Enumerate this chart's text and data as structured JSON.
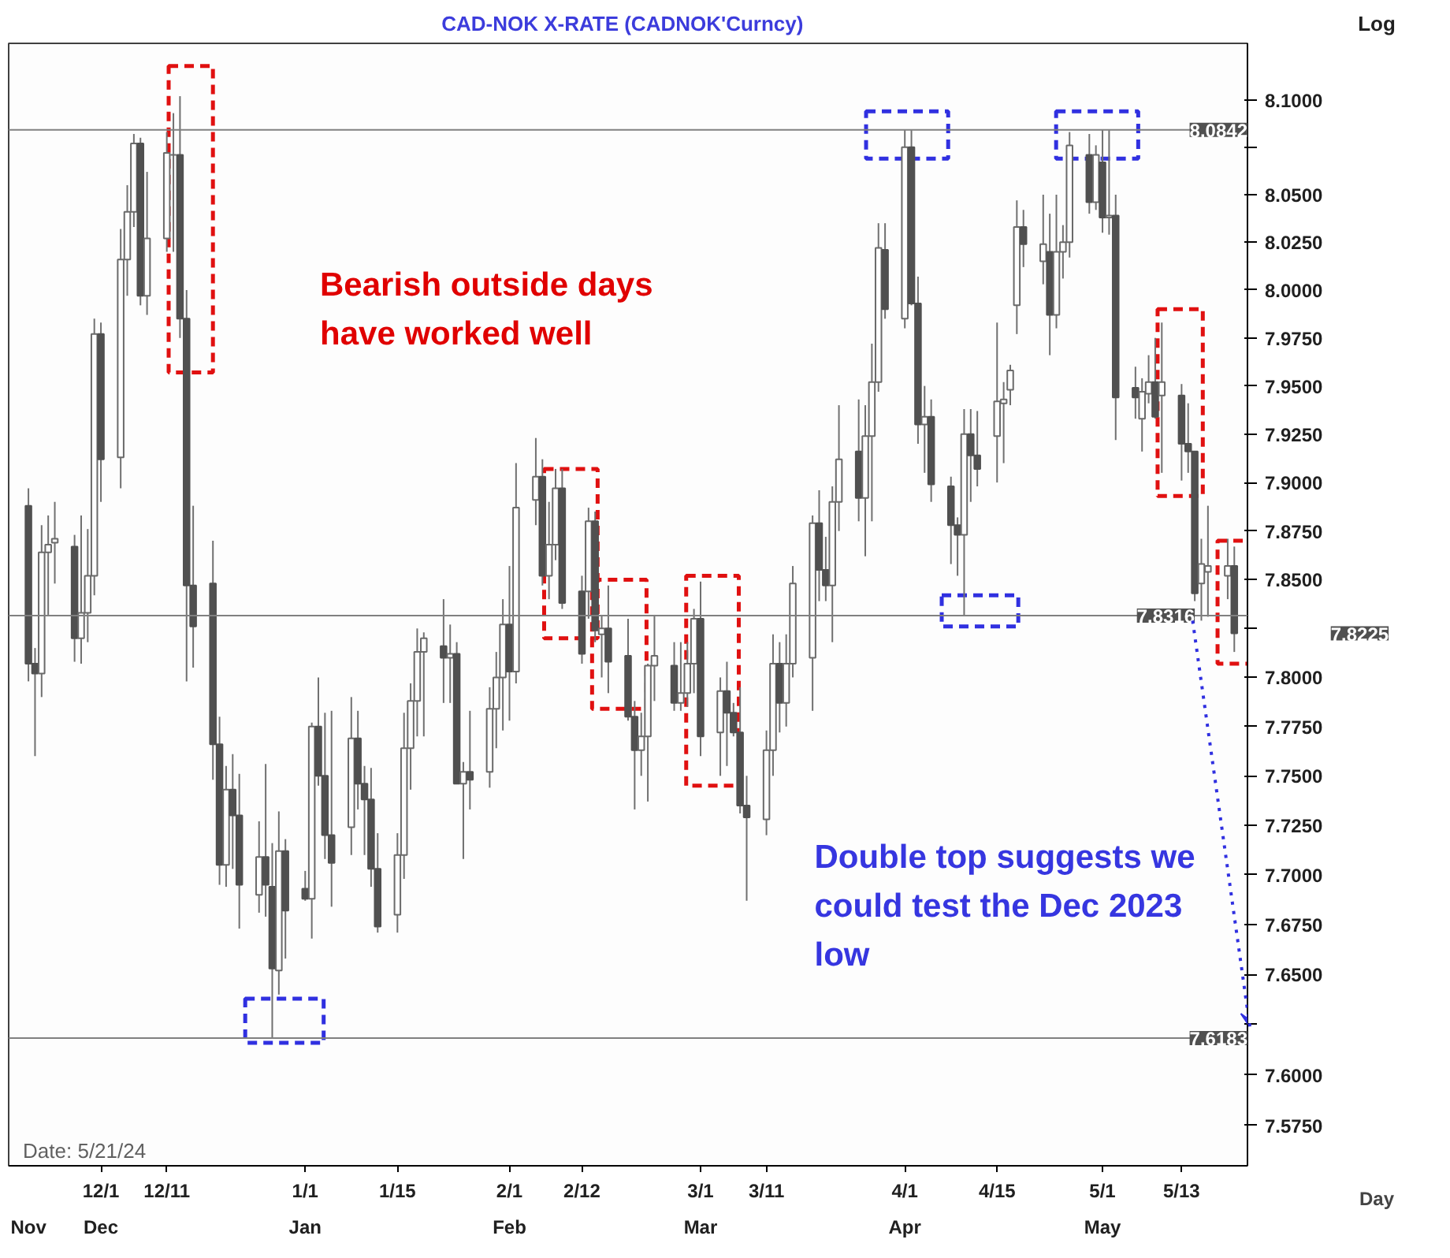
{
  "chart_data": {
    "type": "candlestick",
    "title": "CAD-NOK  X-RATE  (CADNOK'Curncy)",
    "xlabel": "Day",
    "ylabel": "Log",
    "log": "y",
    "colors": [
      "#505050",
      "#505050",
      "#ffffff",
      "#ffffff",
      "#ffffff",
      "#505050",
      "#ffffff",
      "#ffffff",
      "#ffffff",
      "#505050",
      "#ffffff",
      "#ffffff",
      "#ffffff",
      "#505050",
      "#ffffff",
      "#ffffff",
      "#6a6a6a",
      "#505050",
      "#505050",
      "#505050",
      "#505050",
      "#505050",
      "#ffffff",
      "#505050",
      "#505050",
      "#ffffff",
      "#505050",
      "#505050",
      "#ffffff",
      "#505050",
      "#505050",
      "#ffffff",
      "#505050",
      "#505050",
      "#505050",
      "#ffffff",
      "#505050",
      "#505050",
      "#505050",
      "#505050",
      "#ffffff",
      "#ffffff",
      "#ffffff",
      "#ffffff",
      "#ffffff",
      "#505050",
      "#ffffff",
      "#505050",
      "#ffffff",
      "#505050",
      "#ffffff",
      "#ffffff",
      "#ffffff",
      "#505050",
      "#ffffff",
      "#ffffff",
      "#505050",
      "#ffffff",
      "#ffffff",
      "#505050",
      "#505050",
      "#ffffff",
      "#505050",
      "#ffffff",
      "#505050",
      "#505050",
      "#505050",
      "#ffffff",
      "#ffffff",
      "#ffffff",
      "#505050",
      "#ffffff",
      "#ffffff",
      "#ffffff",
      "#505050",
      "#ffffff",
      "#505050",
      "#505050",
      "#505050",
      "#505050",
      "#ffffff",
      "#ffffff",
      "#505050",
      "#ffffff",
      "#ffffff",
      "#ffffff",
      "#505050",
      "#505050",
      "#ffffff",
      "#ffffff",
      "#505050",
      "#ffffff",
      "#ffffff",
      "#ffffff",
      "#505050",
      "#ffffff",
      "#505050",
      "#505050",
      "#ffffff",
      "#505050",
      "#505050",
      "#505050",
      "#ffffff",
      "#505050",
      "#505050",
      "#ffffff",
      "#ffffff",
      "#ffffff",
      "#ffffff",
      "#505050",
      "#ffffff",
      "#505050",
      "#ffffff",
      "#ffffff",
      "#ffffff",
      "#505050",
      "#ffffff",
      "#505050",
      "#ffffff",
      "#505050",
      "#505050",
      "#ffffff",
      "#ffffff",
      "#505050",
      "#ffffff",
      "#505050",
      "#505050",
      "#505050",
      "#ffffff",
      "#ffffff",
      "#ffffff",
      "#505050"
    ],
    "x": [
      "2023-11-20",
      "2023-11-21",
      "2023-11-22",
      "2023-11-23",
      "2023-11-24",
      "2023-11-27",
      "2023-11-28",
      "2023-11-29",
      "2023-11-30",
      "2023-12-01",
      "2023-12-04",
      "2023-12-05",
      "2023-12-06",
      "2023-12-07",
      "2023-12-08",
      "2023-12-11",
      "2023-12-12",
      "2023-12-13",
      "2023-12-14",
      "2023-12-15",
      "2023-12-18",
      "2023-12-19",
      "2023-12-20",
      "2023-12-21",
      "2023-12-22",
      "2023-12-25",
      "2023-12-26",
      "2023-12-27",
      "2023-12-28",
      "2023-12-29",
      "2024-01-01",
      "2024-01-02",
      "2024-01-03",
      "2024-01-04",
      "2024-01-05",
      "2024-01-08",
      "2024-01-09",
      "2024-01-10",
      "2024-01-11",
      "2024-01-12",
      "2024-01-15",
      "2024-01-16",
      "2024-01-17",
      "2024-01-18",
      "2024-01-19",
      "2024-01-22",
      "2024-01-23",
      "2024-01-24",
      "2024-01-25",
      "2024-01-26",
      "2024-01-29",
      "2024-01-30",
      "2024-01-31",
      "2024-02-01",
      "2024-02-02",
      "2024-02-05",
      "2024-02-06",
      "2024-02-07",
      "2024-02-08",
      "2024-02-09",
      "2024-02-12",
      "2024-02-13",
      "2024-02-14",
      "2024-02-15",
      "2024-02-16",
      "2024-02-19",
      "2024-02-20",
      "2024-02-21",
      "2024-02-22",
      "2024-02-23",
      "2024-02-26",
      "2024-02-27",
      "2024-02-28",
      "2024-02-29",
      "2024-03-01",
      "2024-03-04",
      "2024-03-05",
      "2024-03-06",
      "2024-03-07",
      "2024-03-08",
      "2024-03-11",
      "2024-03-12",
      "2024-03-13",
      "2024-03-14",
      "2024-03-15",
      "2024-03-18",
      "2024-03-19",
      "2024-03-20",
      "2024-03-21",
      "2024-03-22",
      "2024-03-25",
      "2024-03-26",
      "2024-03-27",
      "2024-03-28",
      "2024-03-29",
      "2024-04-01",
      "2024-04-02",
      "2024-04-03",
      "2024-04-04",
      "2024-04-05",
      "2024-04-08",
      "2024-04-09",
      "2024-04-10",
      "2024-04-11",
      "2024-04-12",
      "2024-04-15",
      "2024-04-16",
      "2024-04-17",
      "2024-04-18",
      "2024-04-19",
      "2024-04-22",
      "2024-04-23",
      "2024-04-24",
      "2024-04-25",
      "2024-04-26",
      "2024-04-29",
      "2024-04-30",
      "2024-05-01",
      "2024-05-02",
      "2024-05-03",
      "2024-05-06",
      "2024-05-07",
      "2024-05-08",
      "2024-05-09",
      "2024-05-10",
      "2024-05-13",
      "2024-05-14",
      "2024-05-15",
      "2024-05-16",
      "2024-05-17",
      "2024-05-20",
      "2024-05-21"
    ],
    "ohlc": [
      [
        7.888,
        7.897,
        7.798,
        7.807
      ],
      [
        7.807,
        7.815,
        7.76,
        7.802
      ],
      [
        7.802,
        7.878,
        7.79,
        7.864
      ],
      [
        7.864,
        7.883,
        7.832,
        7.868
      ],
      [
        7.869,
        7.89,
        7.848,
        7.871
      ],
      [
        7.867,
        7.873,
        7.808,
        7.82
      ],
      [
        7.82,
        7.883,
        7.807,
        7.833
      ],
      [
        7.833,
        7.876,
        7.818,
        7.852
      ],
      [
        7.852,
        7.985,
        7.842,
        7.977
      ],
      [
        7.977,
        7.983,
        7.89,
        7.912
      ],
      [
        7.913,
        8.032,
        7.897,
        8.016
      ],
      [
        8.016,
        8.055,
        7.997,
        8.041
      ],
      [
        8.041,
        8.082,
        8.033,
        8.077
      ],
      [
        8.077,
        8.08,
        7.992,
        7.997
      ],
      [
        7.997,
        8.062,
        7.987,
        8.027
      ],
      [
        8.027,
        8.083,
        8.02,
        8.072
      ],
      [
        8.071,
        8.093,
        8.02,
        8.071
      ],
      [
        8.071,
        8.102,
        7.975,
        7.985
      ],
      [
        7.985,
        8.0,
        7.798,
        7.847
      ],
      [
        7.847,
        7.888,
        7.805,
        7.826
      ],
      [
        7.848,
        7.87,
        7.748,
        7.766
      ],
      [
        7.766,
        7.78,
        7.695,
        7.705
      ],
      [
        7.705,
        7.755,
        7.694,
        7.743
      ],
      [
        7.743,
        7.761,
        7.703,
        7.73
      ],
      [
        7.73,
        7.751,
        7.673,
        7.695
      ],
      [
        7.69,
        7.727,
        7.681,
        7.709
      ],
      [
        7.709,
        7.756,
        7.679,
        7.695
      ],
      [
        7.694,
        7.716,
        7.6183,
        7.653
      ],
      [
        7.652,
        7.732,
        7.64,
        7.712
      ],
      [
        7.712,
        7.718,
        7.658,
        7.682
      ],
      [
        7.693,
        7.702,
        7.687,
        7.688
      ],
      [
        7.688,
        7.777,
        7.668,
        7.775
      ],
      [
        7.775,
        7.8,
        7.745,
        7.75
      ],
      [
        7.75,
        7.782,
        7.708,
        7.72
      ],
      [
        7.72,
        7.783,
        7.684,
        7.706
      ],
      [
        7.724,
        7.79,
        7.71,
        7.769
      ],
      [
        7.769,
        7.783,
        7.733,
        7.746
      ],
      [
        7.746,
        7.755,
        7.71,
        7.738
      ],
      [
        7.738,
        7.754,
        7.694,
        7.703
      ],
      [
        7.703,
        7.721,
        7.671,
        7.674
      ],
      [
        7.68,
        7.721,
        7.671,
        7.71
      ],
      [
        7.71,
        7.782,
        7.698,
        7.764
      ],
      [
        7.764,
        7.797,
        7.743,
        7.788
      ],
      [
        7.788,
        7.825,
        7.77,
        7.813
      ],
      [
        7.813,
        7.823,
        7.77,
        7.82
      ],
      [
        7.816,
        7.84,
        7.787,
        7.81
      ],
      [
        7.81,
        7.827,
        7.787,
        7.812
      ],
      [
        7.812,
        7.818,
        7.746,
        7.746
      ],
      [
        7.746,
        7.757,
        7.708,
        7.752
      ],
      [
        7.752,
        7.783,
        7.733,
        7.748
      ],
      [
        7.752,
        7.795,
        7.744,
        7.784
      ],
      [
        7.784,
        7.813,
        7.764,
        7.8
      ],
      [
        7.8,
        7.84,
        7.773,
        7.827
      ],
      [
        7.827,
        7.857,
        7.778,
        7.803
      ],
      [
        7.803,
        7.91,
        7.797,
        7.887
      ],
      [
        7.891,
        7.923,
        7.878,
        7.903
      ],
      [
        7.903,
        7.912,
        7.847,
        7.852
      ],
      [
        7.852,
        7.89,
        7.84,
        7.868
      ],
      [
        7.868,
        7.907,
        7.86,
        7.897
      ],
      [
        7.897,
        7.907,
        7.835,
        7.838
      ],
      [
        7.844,
        7.852,
        7.807,
        7.812
      ],
      [
        7.844,
        7.887,
        7.83,
        7.88
      ],
      [
        7.88,
        7.885,
        7.818,
        7.824
      ],
      [
        7.822,
        7.832,
        7.8,
        7.825
      ],
      [
        7.825,
        7.847,
        7.792,
        7.808
      ],
      [
        7.811,
        7.83,
        7.778,
        7.78
      ],
      [
        7.78,
        7.788,
        7.733,
        7.763
      ],
      [
        7.763,
        7.782,
        7.75,
        7.77
      ],
      [
        7.77,
        7.807,
        7.737,
        7.806
      ],
      [
        7.806,
        7.832,
        7.788,
        7.811
      ],
      [
        7.806,
        7.818,
        7.783,
        7.787
      ],
      [
        7.787,
        7.818,
        7.783,
        7.792
      ],
      [
        7.792,
        7.818,
        7.785,
        7.807
      ],
      [
        7.807,
        7.835,
        7.792,
        7.83
      ],
      [
        7.83,
        7.849,
        7.76,
        7.77
      ],
      [
        7.772,
        7.8,
        7.75,
        7.793
      ],
      [
        7.793,
        7.808,
        7.755,
        7.782
      ],
      [
        7.782,
        7.787,
        7.77,
        7.772
      ],
      [
        7.772,
        7.795,
        7.731,
        7.735
      ],
      [
        7.735,
        7.75,
        7.687,
        7.729
      ],
      [
        7.728,
        7.773,
        7.72,
        7.763
      ],
      [
        7.763,
        7.822,
        7.75,
        7.807
      ],
      [
        7.807,
        7.818,
        7.772,
        7.787
      ],
      [
        7.787,
        7.822,
        7.775,
        7.807
      ],
      [
        7.807,
        7.857,
        7.8,
        7.848
      ],
      [
        7.81,
        7.883,
        7.783,
        7.879
      ],
      [
        7.879,
        7.896,
        7.839,
        7.855
      ],
      [
        7.855,
        7.872,
        7.839,
        7.847
      ],
      [
        7.847,
        7.898,
        7.818,
        7.89
      ],
      [
        7.89,
        7.94,
        7.875,
        7.912
      ],
      [
        7.916,
        7.943,
        7.88,
        7.892
      ],
      [
        7.892,
        7.94,
        7.862,
        7.924
      ],
      [
        7.924,
        7.972,
        7.88,
        7.952
      ],
      [
        7.952,
        8.035,
        7.947,
        8.022
      ],
      [
        8.021,
        8.035,
        7.985,
        7.99
      ],
      [
        7.985,
        8.0842,
        7.98,
        8.075
      ],
      [
        8.075,
        8.0842,
        7.992,
        7.993
      ],
      [
        7.993,
        8.007,
        7.92,
        7.93
      ],
      [
        7.93,
        7.95,
        7.905,
        7.934
      ],
      [
        7.934,
        7.943,
        7.89,
        7.899
      ],
      [
        7.898,
        7.903,
        7.858,
        7.878
      ],
      [
        7.878,
        7.882,
        7.852,
        7.873
      ],
      [
        7.873,
        7.938,
        7.8316,
        7.925
      ],
      [
        7.925,
        7.938,
        7.89,
        7.914
      ],
      [
        7.914,
        7.937,
        7.898,
        7.907
      ],
      [
        7.924,
        7.983,
        7.9,
        7.942
      ],
      [
        7.941,
        7.952,
        7.91,
        7.943
      ],
      [
        7.948,
        7.961,
        7.94,
        7.958
      ],
      [
        7.992,
        8.047,
        7.977,
        8.033
      ],
      [
        8.033,
        8.042,
        8.012,
        8.024
      ],
      [
        8.015,
        8.05,
        8.003,
        8.024
      ],
      [
        8.02,
        8.04,
        7.966,
        7.987
      ],
      [
        7.987,
        8.05,
        7.98,
        8.02
      ],
      [
        8.02,
        8.034,
        8.006,
        8.025
      ],
      [
        8.025,
        8.083,
        8.017,
        8.076
      ],
      [
        8.071,
        8.082,
        8.04,
        8.046
      ],
      [
        8.046,
        8.076,
        8.042,
        8.071
      ],
      [
        8.067,
        8.0842,
        8.03,
        8.038
      ],
      [
        8.038,
        8.084,
        8.029,
        8.039
      ],
      [
        8.039,
        8.05,
        7.922,
        7.944
      ],
      [
        7.949,
        7.96,
        7.933,
        7.944
      ],
      [
        7.933,
        7.954,
        7.916,
        7.947
      ],
      [
        7.946,
        7.966,
        7.941,
        7.952
      ],
      [
        7.952,
        7.975,
        7.933,
        7.934
      ],
      [
        7.945,
        7.983,
        7.905,
        7.952
      ],
      [
        7.945,
        7.951,
        7.901,
        7.92
      ],
      [
        7.92,
        7.941,
        7.905,
        7.916
      ],
      [
        7.916,
        7.916,
        7.839,
        7.843
      ],
      [
        7.848,
        7.871,
        7.829,
        7.858
      ],
      [
        7.854,
        7.888,
        7.831,
        7.857
      ],
      [
        7.852,
        7.871,
        7.84,
        7.857
      ],
      [
        7.857,
        7.867,
        7.813,
        7.8225
      ]
    ],
    "xlim": [
      "2023-11-17",
      "2024-05-23"
    ],
    "xticks": [
      {
        "value": "2023-12-01",
        "label": "12/1"
      },
      {
        "value": "2023-12-11",
        "label": "12/11"
      },
      {
        "value": "2024-01-01",
        "label": "1/1"
      },
      {
        "value": "2024-01-15",
        "label": "1/15"
      },
      {
        "value": "2024-02-01",
        "label": "2/1"
      },
      {
        "value": "2024-02-12",
        "label": "2/12"
      },
      {
        "value": "2024-03-01",
        "label": "3/1"
      },
      {
        "value": "2024-03-11",
        "label": "3/11"
      },
      {
        "value": "2024-04-01",
        "label": "4/1"
      },
      {
        "value": "2024-04-15",
        "label": "4/15"
      },
      {
        "value": "2024-05-01",
        "label": "5/1"
      },
      {
        "value": "2024-05-13",
        "label": "5/13"
      }
    ],
    "x2lim": [
      "2023-11-17",
      "2024-05-23"
    ],
    "x2ticks": [
      {
        "value": "2023-11-20",
        "label": "Nov"
      },
      {
        "value": "2023-12-01",
        "label": "Dec"
      },
      {
        "value": "2024-01-01",
        "label": "Jan"
      },
      {
        "value": "2024-02-01",
        "label": "Feb"
      },
      {
        "value": "2024-03-01",
        "label": "Mar"
      },
      {
        "value": "2024-04-01",
        "label": "Apr"
      },
      {
        "value": "2024-05-01",
        "label": "May"
      }
    ],
    "ylim": [
      7.555,
      8.13
    ],
    "yticks": [
      {
        "value": 7.575,
        "label": "7.5750"
      },
      {
        "value": 7.6,
        "label": "7.6000"
      },
      {
        "value": 7.625,
        "label": null
      },
      {
        "value": 7.65,
        "label": "7.6500"
      },
      {
        "value": 7.675,
        "label": "7.6750"
      },
      {
        "value": 7.7,
        "label": "7.7000"
      },
      {
        "value": 7.725,
        "label": "7.7250"
      },
      {
        "value": 7.75,
        "label": "7.7500"
      },
      {
        "value": 7.775,
        "label": "7.7750"
      },
      {
        "value": 7.8,
        "label": "7.8000"
      },
      {
        "value": 7.825,
        "label": null
      },
      {
        "value": 7.85,
        "label": "7.8500"
      },
      {
        "value": 7.875,
        "label": "7.8750"
      },
      {
        "value": 7.9,
        "label": "7.9000"
      },
      {
        "value": 7.925,
        "label": "7.9250"
      },
      {
        "value": 7.95,
        "label": "7.9500"
      },
      {
        "value": 7.975,
        "label": "7.9750"
      },
      {
        "value": 8.0,
        "label": "8.0000"
      },
      {
        "value": 8.025,
        "label": "8.0250"
      },
      {
        "value": 8.05,
        "label": "8.0500"
      },
      {
        "value": 8.075,
        "label": null
      },
      {
        "value": 8.1,
        "label": "8.1000"
      }
    ],
    "ref_lines": [
      {
        "axis": "y",
        "value": 8.0842,
        "label": "8.0842",
        "color": "#808080"
      },
      {
        "axis": "y",
        "value": 7.8316,
        "label": "7.8316",
        "color": "#808080"
      },
      {
        "axis": "y",
        "value": 7.6183,
        "label": "7.6183",
        "color": "#808080"
      }
    ],
    "annotations": [
      "Bearish outside days have worked well",
      "Double top suggests we could test the Dec 2023 low",
      "Date:     5/21/24",
      "7.8225"
    ]
  }
}
